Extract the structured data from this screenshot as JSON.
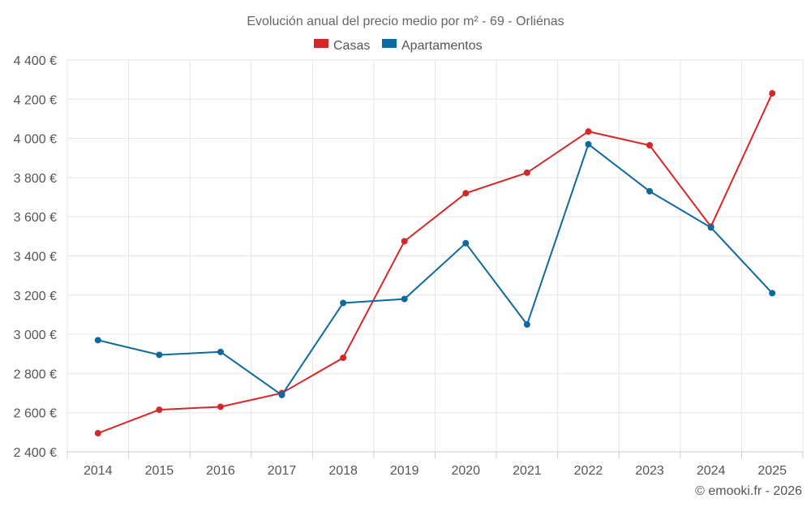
{
  "chart_data": {
    "type": "line",
    "title": "Evolución anual del precio medio por m² - 69 - Orliénas",
    "categories": [
      "2014",
      "2015",
      "2016",
      "2017",
      "2018",
      "2019",
      "2020",
      "2021",
      "2022",
      "2023",
      "2024",
      "2025"
    ],
    "series": [
      {
        "name": "Casas",
        "color": "#d62728",
        "values": [
          2495,
          2615,
          2630,
          2700,
          2880,
          3475,
          3720,
          3825,
          4035,
          3965,
          3550,
          4230
        ]
      },
      {
        "name": "Apartamentos",
        "color": "#0e6a9e",
        "values": [
          2970,
          2895,
          2910,
          2690,
          3160,
          3180,
          3465,
          3050,
          3970,
          3730,
          3545,
          3210
        ]
      }
    ],
    "ylim": [
      2400,
      4400
    ],
    "yticks": [
      2400,
      2600,
      2800,
      3000,
      3200,
      3400,
      3600,
      3800,
      4000,
      4200,
      4400
    ],
    "ytick_labels": [
      "2 400 €",
      "2 600 €",
      "2 800 €",
      "3 000 €",
      "3 200 €",
      "3 400 €",
      "3 600 €",
      "3 800 €",
      "4 000 €",
      "4 200 €",
      "4 400 €"
    ],
    "xlabel": "",
    "ylabel": "",
    "legend_position": "top-center",
    "grid": true
  },
  "credit": "© emooki.fr - 2026"
}
